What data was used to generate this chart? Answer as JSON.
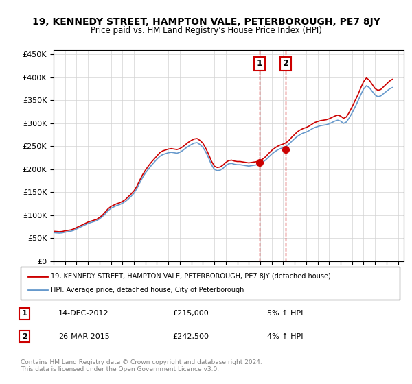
{
  "title": "19, KENNEDY STREET, HAMPTON VALE, PETERBOROUGH, PE7 8JY",
  "subtitle": "Price paid vs. HM Land Registry's House Price Index (HPI)",
  "legend_line1": "19, KENNEDY STREET, HAMPTON VALE, PETERBOROUGH, PE7 8JY (detached house)",
  "legend_line2": "HPI: Average price, detached house, City of Peterborough",
  "footer": "Contains HM Land Registry data © Crown copyright and database right 2024.\nThis data is licensed under the Open Government Licence v3.0.",
  "sale1_date": "14-DEC-2012",
  "sale1_price": 215000,
  "sale1_hpi": "5% ↑ HPI",
  "sale1_year": 2012.96,
  "sale2_date": "26-MAR-2015",
  "sale2_price": 242500,
  "sale2_hpi": "4% ↑ HPI",
  "sale2_year": 2015.23,
  "red_color": "#cc0000",
  "blue_color": "#6699cc",
  "ylim": [
    0,
    460000
  ],
  "xlim_start": 1995,
  "xlim_end": 2025.5,
  "yticks": [
    0,
    50000,
    100000,
    150000,
    200000,
    250000,
    300000,
    350000,
    400000,
    450000
  ],
  "ytick_labels": [
    "£0",
    "£50K",
    "£100K",
    "£150K",
    "£200K",
    "£250K",
    "£300K",
    "£350K",
    "£400K",
    "£450K"
  ],
  "hpi_data": {
    "years": [
      1995.0,
      1995.25,
      1995.5,
      1995.75,
      1996.0,
      1996.25,
      1996.5,
      1996.75,
      1997.0,
      1997.25,
      1997.5,
      1997.75,
      1998.0,
      1998.25,
      1998.5,
      1998.75,
      1999.0,
      1999.25,
      1999.5,
      1999.75,
      2000.0,
      2000.25,
      2000.5,
      2000.75,
      2001.0,
      2001.25,
      2001.5,
      2001.75,
      2002.0,
      2002.25,
      2002.5,
      2002.75,
      2003.0,
      2003.25,
      2003.5,
      2003.75,
      2004.0,
      2004.25,
      2004.5,
      2004.75,
      2005.0,
      2005.25,
      2005.5,
      2005.75,
      2006.0,
      2006.25,
      2006.5,
      2006.75,
      2007.0,
      2007.25,
      2007.5,
      2007.75,
      2008.0,
      2008.25,
      2008.5,
      2008.75,
      2009.0,
      2009.25,
      2009.5,
      2009.75,
      2010.0,
      2010.25,
      2010.5,
      2010.75,
      2011.0,
      2011.25,
      2011.5,
      2011.75,
      2012.0,
      2012.25,
      2012.5,
      2012.75,
      2013.0,
      2013.25,
      2013.5,
      2013.75,
      2014.0,
      2014.25,
      2014.5,
      2014.75,
      2015.0,
      2015.25,
      2015.5,
      2015.75,
      2016.0,
      2016.25,
      2016.5,
      2016.75,
      2017.0,
      2017.25,
      2017.5,
      2017.75,
      2018.0,
      2018.25,
      2018.5,
      2018.75,
      2019.0,
      2019.25,
      2019.5,
      2019.75,
      2020.0,
      2020.25,
      2020.5,
      2020.75,
      2021.0,
      2021.25,
      2021.5,
      2021.75,
      2022.0,
      2022.25,
      2022.5,
      2022.75,
      2023.0,
      2023.25,
      2023.5,
      2023.75,
      2024.0,
      2024.25,
      2024.5
    ],
    "hpi_values": [
      62000,
      61500,
      61000,
      61500,
      63000,
      64000,
      65000,
      67000,
      70000,
      73000,
      76000,
      79000,
      82000,
      84000,
      86000,
      88000,
      92000,
      97000,
      103000,
      110000,
      115000,
      118000,
      121000,
      123000,
      126000,
      130000,
      135000,
      141000,
      148000,
      158000,
      170000,
      182000,
      192000,
      200000,
      208000,
      215000,
      222000,
      228000,
      232000,
      234000,
      236000,
      237000,
      236000,
      235000,
      237000,
      241000,
      246000,
      250000,
      254000,
      257000,
      258000,
      254000,
      248000,
      238000,
      225000,
      210000,
      200000,
      197000,
      198000,
      202000,
      208000,
      212000,
      213000,
      211000,
      210000,
      210000,
      209000,
      208000,
      207000,
      208000,
      209000,
      210000,
      212000,
      216000,
      221000,
      227000,
      233000,
      238000,
      242000,
      245000,
      247000,
      250000,
      255000,
      261000,
      267000,
      272000,
      276000,
      279000,
      281000,
      284000,
      288000,
      291000,
      293000,
      295000,
      296000,
      297000,
      299000,
      302000,
      305000,
      307000,
      305000,
      300000,
      303000,
      312000,
      323000,
      335000,
      348000,
      362000,
      375000,
      382000,
      378000,
      370000,
      362000,
      358000,
      360000,
      365000,
      370000,
      375000,
      378000
    ],
    "red_values": [
      65000,
      64500,
      64000,
      64500,
      66000,
      67000,
      68000,
      70000,
      73000,
      76000,
      79000,
      82000,
      85000,
      87000,
      89000,
      91000,
      95000,
      100000,
      107000,
      114000,
      119000,
      122000,
      125000,
      127000,
      130000,
      134000,
      140000,
      146000,
      153000,
      163000,
      176000,
      188000,
      198000,
      207000,
      215000,
      222000,
      229000,
      236000,
      240000,
      242000,
      244000,
      245000,
      244000,
      243000,
      245000,
      249000,
      254000,
      259000,
      263000,
      266000,
      267000,
      263000,
      257000,
      246000,
      233000,
      218000,
      207000,
      204000,
      205000,
      209000,
      215000,
      219000,
      220000,
      218000,
      217000,
      217000,
      216000,
      215000,
      214000,
      215000,
      216000,
      217000,
      219000,
      223000,
      228000,
      235000,
      241000,
      246000,
      250000,
      253000,
      255000,
      258000,
      263000,
      270000,
      276000,
      282000,
      286000,
      289000,
      291000,
      294000,
      298000,
      302000,
      304000,
      306000,
      307000,
      308000,
      310000,
      313000,
      316000,
      318000,
      316000,
      311000,
      314000,
      324000,
      336000,
      349000,
      362000,
      377000,
      391000,
      399000,
      394000,
      385000,
      376000,
      372000,
      374000,
      380000,
      386000,
      392000,
      396000
    ]
  }
}
